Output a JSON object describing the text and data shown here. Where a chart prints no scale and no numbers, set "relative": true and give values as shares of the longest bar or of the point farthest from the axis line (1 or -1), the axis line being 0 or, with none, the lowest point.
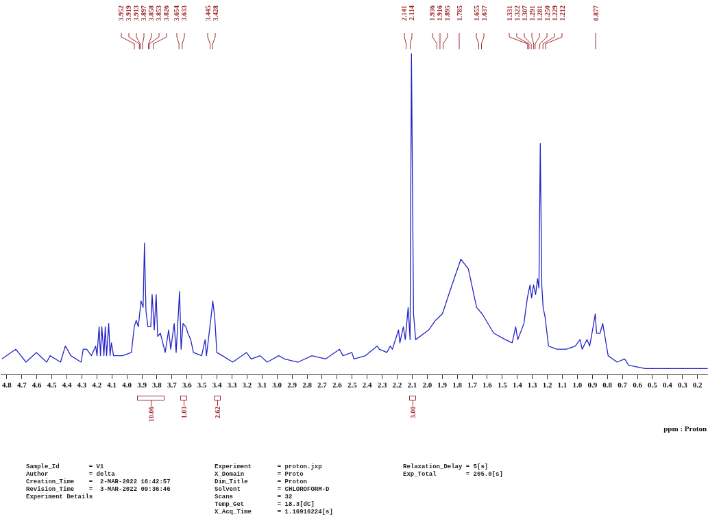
{
  "chart_data": {
    "type": "line",
    "relative": true,
    "xlabel": "ppm : Proton",
    "color": "#2323c8",
    "line_style": "solid",
    "marker": "none",
    "grid": false,
    "legend": false,
    "xlim": [
      4.84,
      0.13
    ],
    "xticks": [
      4.8,
      4.7,
      4.6,
      4.5,
      4.4,
      4.3,
      4.2,
      4.1,
      {
        "value": 4,
        "label": "4.0"
      },
      3.9,
      3.8,
      3.7,
      3.6,
      3.5,
      3.4,
      3.3,
      3.2,
      3.1,
      {
        "value": 3,
        "label": "3.0"
      },
      2.9,
      2.8,
      2.7,
      2.6,
      2.5,
      2.4,
      2.3,
      2.2,
      2.1,
      {
        "value": 2,
        "label": "2.0"
      },
      1.9,
      1.8,
      1.7,
      1.6,
      1.5,
      1.4,
      1.3,
      1.2,
      1.1,
      {
        "value": 1,
        "label": "1.0"
      },
      0.9,
      0.8,
      0.7,
      0.6,
      0.5,
      0.4,
      0.3,
      0.2
    ],
    "x": [
      4.832,
      4.74,
      4.672,
      4.603,
      4.534,
      4.511,
      4.442,
      4.41,
      4.373,
      4.305,
      4.291,
      4.268,
      4.236,
      4.208,
      4.199,
      4.185,
      4.176,
      4.167,
      4.153,
      4.144,
      4.135,
      4.121,
      4.112,
      4.103,
      4.089,
      4.029,
      3.97,
      3.951,
      3.938,
      3.924,
      3.906,
      3.892,
      3.883,
      3.873,
      3.86,
      3.841,
      3.832,
      3.818,
      3.805,
      3.795,
      3.777,
      3.745,
      3.722,
      3.708,
      3.685,
      3.672,
      3.649,
      3.639,
      3.626,
      3.607,
      3.594,
      3.575,
      3.557,
      3.502,
      3.479,
      3.47,
      3.442,
      3.428,
      3.415,
      3.401,
      3.364,
      3.295,
      3.204,
      3.172,
      3.112,
      3.066,
      2.988,
      2.951,
      2.86,
      2.768,
      2.676,
      2.584,
      2.561,
      2.502,
      2.488,
      2.411,
      2.333,
      2.319,
      2.269,
      2.246,
      2.232,
      2.191,
      2.182,
      2.159,
      2.146,
      2.127,
      2.114,
      2.105,
      2.091,
      2.077,
      1.99,
      1.945,
      1.899,
      1.835,
      1.776,
      1.726,
      1.671,
      1.634,
      1.557,
      1.479,
      1.434,
      1.411,
      1.397,
      1.356,
      1.333,
      1.315,
      1.305,
      1.292,
      1.278,
      1.265,
      1.256,
      1.247,
      1.237,
      1.228,
      1.215,
      1.192,
      1.137,
      1.073,
      1.014,
      0.982,
      0.968,
      0.936,
      0.918,
      0.895,
      0.881,
      0.872,
      0.849,
      0.831,
      0.813,
      0.795,
      0.735,
      0.685,
      0.658,
      0.548,
      0.132
    ],
    "values": [
      0.05,
      0.08,
      0.04,
      0.07,
      0.04,
      0.06,
      0.04,
      0.09,
      0.06,
      0.04,
      0.08,
      0.08,
      0.06,
      0.09,
      0.06,
      0.15,
      0.06,
      0.15,
      0.06,
      0.15,
      0.06,
      0.16,
      0.06,
      0.1,
      0.06,
      0.06,
      0.07,
      0.15,
      0.17,
      0.15,
      0.23,
      0.21,
      0.41,
      0.2,
      0.15,
      0.15,
      0.25,
      0.14,
      0.25,
      0.12,
      0.13,
      0.07,
      0.14,
      0.08,
      0.16,
      0.07,
      0.26,
      0.08,
      0.16,
      0.15,
      0.13,
      0.11,
      0.07,
      0.06,
      0.11,
      0.06,
      0.17,
      0.23,
      0.18,
      0.07,
      0.06,
      0.04,
      0.07,
      0.05,
      0.06,
      0.04,
      0.06,
      0.05,
      0.04,
      0.06,
      0.05,
      0.08,
      0.06,
      0.07,
      0.05,
      0.06,
      0.09,
      0.08,
      0.07,
      0.09,
      0.08,
      0.14,
      0.1,
      0.15,
      0.11,
      0.21,
      0.11,
      1,
      0.19,
      0.11,
      0.14,
      0.17,
      0.19,
      0.28,
      0.36,
      0.33,
      0.21,
      0.19,
      0.13,
      0.11,
      0.1,
      0.15,
      0.11,
      0.16,
      0.24,
      0.28,
      0.24,
      0.28,
      0.25,
      0.3,
      0.27,
      0.72,
      0.28,
      0.21,
      0.18,
      0.09,
      0.08,
      0.08,
      0.09,
      0.11,
      0.08,
      0.11,
      0.09,
      0.15,
      0.19,
      0.13,
      0.13,
      0.16,
      0.11,
      0.06,
      0.04,
      0.05,
      0.03,
      0.02,
      0.02
    ],
    "annotations": [
      "3.952",
      "3.919",
      "3.913",
      "3.897",
      "3.858",
      "3.853",
      "3.826",
      "3.654",
      "3.633",
      "3.445",
      "3.428",
      "2.141",
      "2.114",
      "1.936",
      "1.916",
      "1.895",
      "1.785",
      "1.655",
      "1.637",
      "1.331",
      "1.322",
      "1.307",
      "1.291",
      "1.281",
      "1.250",
      "1.229",
      "1.212",
      "0.877",
      "10.06",
      "1.03",
      "2.62",
      "3.00",
      "Sample_Id        = V1",
      "Author           = delta",
      "Creation_Time    =  2-MAR-2022 16:42:57",
      "Revision_Time    =  3-MAR-2022 09:36:46",
      "Experiment Details",
      "Experiment       = proton.jxp",
      "X_Domain         = Proto",
      "Dim_Title        = Proton",
      "Solvent          = CHLOROFORM-D",
      "Scans            = 32",
      "Temp_Get         = 18.3[dC]",
      "X_Acq_Time       = 1.16916224[s]",
      "Relaxation_Delay = 5[s]",
      "Exp_Total        = 205.0[s]"
    ]
  }
}
